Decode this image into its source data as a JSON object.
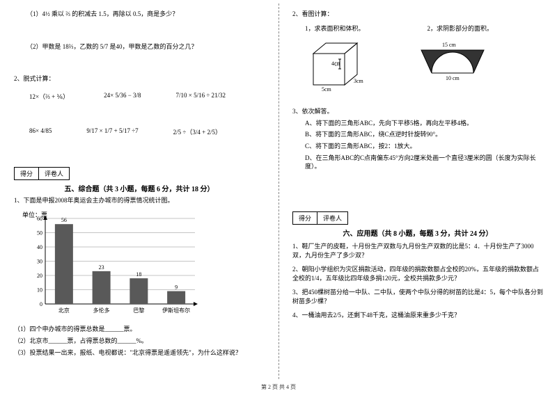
{
  "left": {
    "q1_1": "（1）4½ 乘以 ⅔ 的积减去 1.5，再除以 0.5，商是多少？",
    "q1_2": "（2）甲数是 18⅔，乙数的 5/7 是40，甲数是乙数的百分之几？",
    "q2_title": "2、脱式计算：",
    "row1": [
      "12×（⅔ + ⅙）",
      "24× 5/36 − 3/8",
      "7/10 × 5/16 ÷ 21/32"
    ],
    "row2": [
      "86× 4/85",
      "9/17 × 1/7 + 5/17 ÷7",
      "2/5 ÷（3/4 + 2/5）"
    ],
    "score_labels": [
      "得分",
      "评卷人"
    ],
    "section5_title": "五、综合题（共 3 小题，每题 6 分，共计 18 分）",
    "q5_1": "1、下面是申报2008年奥运会主办城市的得票情况统计图。",
    "chart": {
      "ylabel": "单位：票",
      "ymax": 60,
      "ytick": 10,
      "categories": [
        "北京",
        "多伦多",
        "巴黎",
        "伊斯坦布尔"
      ],
      "values": [
        56,
        23,
        18,
        9
      ],
      "bar_color": "#595959",
      "grid_color": "#888888",
      "axis_color": "#000000"
    },
    "sub1": "（1）四个申办城市的得票总数是______票。",
    "sub2": "（2）北京市______票，占得票总数的______%。",
    "sub3": "（3）投票结果一出来，报纸、电视都说：\"北京得票是遥遥领先\"，为什么这样说？"
  },
  "right": {
    "q2_title": "2、看图计算：",
    "q2_a": "1，求表面积和体积。",
    "q2_b": "2，求阴影部分的面积。",
    "cube": {
      "w": "5cm",
      "h": "4㎝",
      "d": "3cm"
    },
    "arch": {
      "topw": "15 cm",
      "botw": "10 cm"
    },
    "q3_title": "3、依次解答。",
    "q3_a": "A、将下面的三角形ABC，先向下平移5格，再向左平移4格。",
    "q3_b": "B、将下面的三角形ABC，绕C点逆时针旋转90°。",
    "q3_c": "C、将下面的三角形ABC，按2：1放大。",
    "q3_d": "D、在三角形ABC的C点南偏东45°方向2厘米处画一个直径3厘米的圆（长度为实际长度）。",
    "score_labels": [
      "得分",
      "评卷人"
    ],
    "section6_title": "六、应用题（共 8 小题，每题 3 分，共计 24 分）",
    "q6_1": "1、鞋厂生产的皮鞋，十月份生产双数与九月份生产双数的比是5：4．十月份生产了3000双，九月份生产了多少双？",
    "q6_2": "2、朝阳小学组织为灾区捐款活动，四年级的捐款数额占全校的20%，五年级的捐款数额占全校的1/4，五年级比四年级多捐120元，全校共捐款多少元？",
    "q6_3": "3、把450棵树苗分给一中队、二中队，使两个中队分得的树苗的比是4：5，每个中队各分到树苗多少棵？",
    "q6_4": "4、一桶油用去2/5，还剩下48千克，这桶油原来重多少千克？"
  },
  "footer": "第 2 页 共 4 页"
}
